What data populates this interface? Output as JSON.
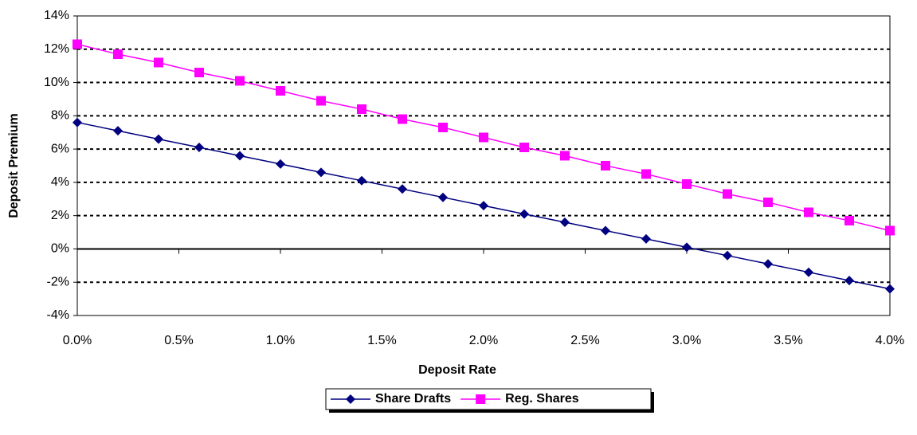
{
  "chart_data": {
    "type": "line",
    "x_label": "Deposit Rate",
    "y_label": "Deposit Premium",
    "x": [
      0,
      0.2,
      0.4,
      0.6,
      0.8,
      1.0,
      1.2,
      1.4,
      1.6,
      1.8,
      2.0,
      2.2,
      2.4,
      2.6,
      2.8,
      3.0,
      3.2,
      3.4,
      3.6,
      3.8,
      4.0
    ],
    "series": [
      {
        "name": "Share Drafts",
        "color": "#000080",
        "marker": "diamond",
        "values": [
          7.6,
          7.1,
          6.6,
          6.1,
          5.6,
          5.1,
          4.6,
          4.1,
          3.6,
          3.1,
          2.6,
          2.1,
          1.6,
          1.1,
          0.6,
          0.1,
          -0.4,
          -0.9,
          -1.4,
          -1.9,
          -2.4
        ]
      },
      {
        "name": "Reg. Shares",
        "color": "#ff00ff",
        "marker": "square",
        "values": [
          12.3,
          11.7,
          11.2,
          10.6,
          10.1,
          9.5,
          8.9,
          8.4,
          7.8,
          7.3,
          6.7,
          6.1,
          5.6,
          5.0,
          4.5,
          3.9,
          3.3,
          2.8,
          2.2,
          1.7,
          1.1
        ]
      }
    ],
    "xlim": [
      0,
      4.0
    ],
    "xticks": [
      {
        "value": 0,
        "label": "0.0%"
      },
      {
        "value": 0.5,
        "label": "0.5%"
      },
      {
        "value": 1.0,
        "label": "1.0%"
      },
      {
        "value": 1.5,
        "label": "1.5%"
      },
      {
        "value": 2.0,
        "label": "2.0%"
      },
      {
        "value": 2.5,
        "label": "2.5%"
      },
      {
        "value": 3.0,
        "label": "3.0%"
      },
      {
        "value": 3.5,
        "label": "3.5%"
      },
      {
        "value": 4.0,
        "label": "4.0%"
      }
    ],
    "ylim": [
      -4,
      14
    ],
    "yticks": [
      {
        "value": -4,
        "label": "-4%"
      },
      {
        "value": -2,
        "label": "-2%"
      },
      {
        "value": 0,
        "label": "0%"
      },
      {
        "value": 2,
        "label": "2%"
      },
      {
        "value": 4,
        "label": "4%"
      },
      {
        "value": 6,
        "label": "6%"
      },
      {
        "value": 8,
        "label": "8%"
      },
      {
        "value": 10,
        "label": "10%"
      },
      {
        "value": 12,
        "label": "12%"
      },
      {
        "value": 14,
        "label": "14%"
      }
    ],
    "grid": true,
    "legend": "bottom"
  }
}
